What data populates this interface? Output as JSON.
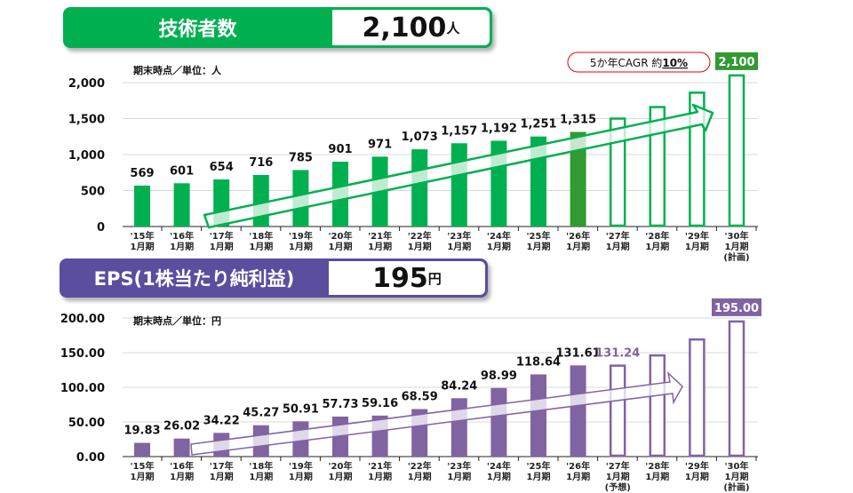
{
  "header_top": {
    "title": "技術者数",
    "value": "2,100",
    "unit": "人"
  },
  "header_bottom": {
    "title": "EPS(1株当たり純利益)",
    "value": "195",
    "unit": "円"
  },
  "colors": {
    "green": "#00B050",
    "green_dark": "#339933",
    "purple": "#8064A2",
    "purple_header": "#5B4E9E"
  },
  "chart_data": [
    {
      "type": "bar",
      "title": "技術者数",
      "note": "期末時点／単位：人",
      "ylim": [
        0,
        2000
      ],
      "yticks": [
        "0",
        "500",
        "1,000",
        "1,500",
        "2,000"
      ],
      "ytick_values": [
        0,
        500,
        1000,
        1500,
        2000
      ],
      "categories": [
        [
          "'15年",
          "1月期"
        ],
        [
          "'16年",
          "1月期"
        ],
        [
          "'17年",
          "1月期"
        ],
        [
          "'18年",
          "1月期"
        ],
        [
          "'19年",
          "1月期"
        ],
        [
          "'20年",
          "1月期"
        ],
        [
          "'21年",
          "1月期"
        ],
        [
          "'22年",
          "1月期"
        ],
        [
          "'23年",
          "1月期"
        ],
        [
          "'24年",
          "1月期"
        ],
        [
          "'25年",
          "1月期"
        ],
        [
          "'26年",
          "1月期"
        ],
        [
          "'27年",
          "1月期"
        ],
        [
          "'28年",
          "1月期"
        ],
        [
          "'29年",
          "1月期"
        ],
        [
          "'30年",
          "1月期",
          "(計画)"
        ]
      ],
      "values": [
        569,
        601,
        654,
        716,
        785,
        901,
        971,
        1073,
        1157,
        1192,
        1251,
        1315,
        1500,
        1660,
        1860,
        2100
      ],
      "labels": [
        "569",
        "601",
        "654",
        "716",
        "785",
        "901",
        "971",
        "1,073",
        "1,157",
        "1,192",
        "1,251",
        "1,315",
        "",
        "",
        "",
        "2,100"
      ],
      "outlined_from": 12,
      "annotation": {
        "prefix": "5か年CAGR 約",
        "value": "10%"
      }
    },
    {
      "type": "bar",
      "title": "EPS(1株当たり純利益)",
      "note": "期末時点／単位：円",
      "ylim": [
        0,
        200
      ],
      "yticks": [
        "0.00",
        "50.00",
        "100.00",
        "150.00",
        "200.00"
      ],
      "ytick_values": [
        0,
        50,
        100,
        150,
        200
      ],
      "categories": [
        [
          "'15年",
          "1月期"
        ],
        [
          "'16年",
          "1月期"
        ],
        [
          "'17年",
          "1月期"
        ],
        [
          "'18年",
          "1月期"
        ],
        [
          "'19年",
          "1月期"
        ],
        [
          "'20年",
          "1月期"
        ],
        [
          "'21年",
          "1月期"
        ],
        [
          "'22年",
          "1月期"
        ],
        [
          "'23年",
          "1月期"
        ],
        [
          "'24年",
          "1月期"
        ],
        [
          "'25年",
          "1月期"
        ],
        [
          "'26年",
          "1月期"
        ],
        [
          "'27年",
          "1月期",
          "(予想)"
        ],
        [
          "'28年",
          "1月期"
        ],
        [
          "'29年",
          "1月期"
        ],
        [
          "'30年",
          "1月期",
          "(計画)"
        ]
      ],
      "values": [
        19.83,
        26.02,
        34.22,
        45.27,
        50.91,
        57.73,
        59.16,
        68.59,
        84.24,
        98.99,
        118.64,
        131.61,
        131.24,
        146,
        169,
        195
      ],
      "labels": [
        "19.83",
        "26.02",
        "34.22",
        "45.27",
        "50.91",
        "57.73",
        "59.16",
        "68.59",
        "84.24",
        "98.99",
        "118.64",
        "131.61",
        "131.24",
        "",
        "",
        "195.00"
      ],
      "outlined_from": 12
    }
  ]
}
